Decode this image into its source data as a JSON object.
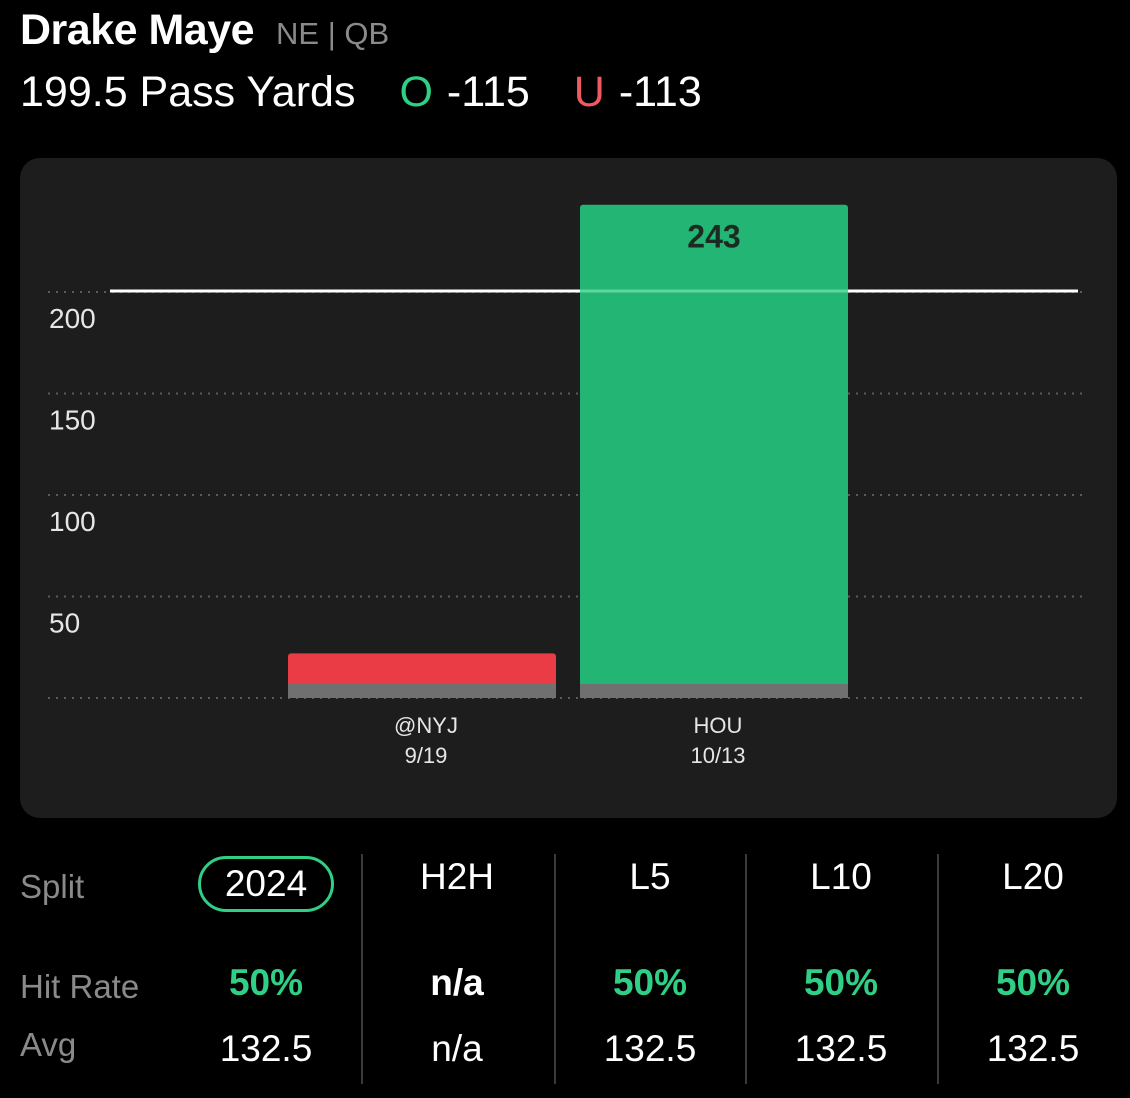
{
  "header": {
    "player_name": "Drake Maye",
    "team_pos": "NE | QB",
    "line_label": "199.5 Pass Yards",
    "over_symbol": "O",
    "over_odds": "-115",
    "under_symbol": "U",
    "under_odds": "-113"
  },
  "colors": {
    "over": "#2fcf86",
    "under": "#ee5a5f",
    "bar_hit": "#22b573",
    "bar_miss": "#e93c45",
    "bar_base": "#707070",
    "card_bg": "#1d1d1d"
  },
  "chart_data": {
    "type": "bar",
    "categories": [
      "@NYJ\n9/19",
      "HOU\n10/13"
    ],
    "category_lines": [
      [
        "@NYJ",
        "9/19"
      ],
      [
        "HOU",
        "10/13"
      ]
    ],
    "values": [
      22,
      243
    ],
    "value_labels": [
      "",
      "243"
    ],
    "bar_colors": [
      "#e93c45",
      "#22b573"
    ],
    "line_value": 199.5,
    "yticks": [
      50,
      100,
      150,
      200
    ],
    "ylim": [
      0,
      240
    ],
    "grid": true,
    "title": "",
    "xlabel": "",
    "ylabel": ""
  },
  "stats": {
    "row_labels": {
      "split": "Split",
      "hit_rate": "Hit Rate",
      "avg": "Avg"
    },
    "columns": [
      {
        "label": "2024",
        "hit_rate": "50%",
        "avg": "132.5",
        "selected": true,
        "hit_color": "green"
      },
      {
        "label": "H2H",
        "hit_rate": "n/a",
        "avg": "n/a",
        "selected": false,
        "hit_color": "white"
      },
      {
        "label": "L5",
        "hit_rate": "50%",
        "avg": "132.5",
        "selected": false,
        "hit_color": "green"
      },
      {
        "label": "L10",
        "hit_rate": "50%",
        "avg": "132.5",
        "selected": false,
        "hit_color": "green"
      },
      {
        "label": "L20",
        "hit_rate": "50%",
        "avg": "132.5",
        "selected": false,
        "hit_color": "green"
      }
    ]
  }
}
